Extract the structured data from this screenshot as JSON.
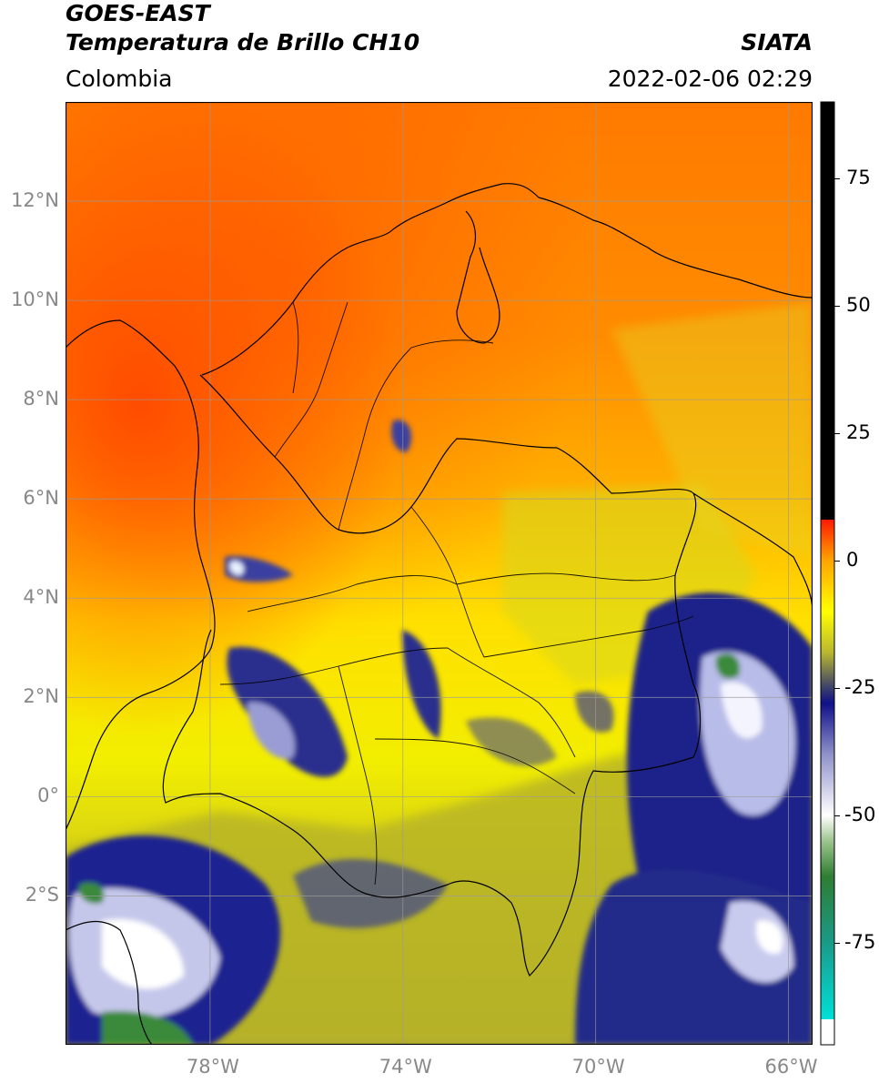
{
  "header": {
    "satellite": "GOES-EAST",
    "product": "Temperatura de Brillo CH10",
    "region": "Colombia",
    "agency": "SIATA",
    "datetime": "2022-02-06 02:29"
  },
  "map": {
    "extent": {
      "lon": [
        -81.0,
        -65.5
      ],
      "lat": [
        -5.0,
        14.0
      ]
    },
    "lat_ticks": [
      {
        "value": 12,
        "label": "12°N"
      },
      {
        "value": 10,
        "label": "10°N"
      },
      {
        "value": 8,
        "label": "8°N"
      },
      {
        "value": 6,
        "label": "6°N"
      },
      {
        "value": 4,
        "label": "4°N"
      },
      {
        "value": 2,
        "label": "2°N"
      },
      {
        "value": 0,
        "label": "0°"
      },
      {
        "value": -2,
        "label": "2°S"
      }
    ],
    "lon_ticks": [
      {
        "value": -78,
        "label": "78°W"
      },
      {
        "value": -74,
        "label": "74°W"
      },
      {
        "value": -70,
        "label": "70°W"
      },
      {
        "value": -66,
        "label": "66°W"
      }
    ],
    "grid": true
  },
  "colorbar": {
    "range": [
      -95,
      90
    ],
    "ticks": [
      {
        "value": 75,
        "label": "75"
      },
      {
        "value": 50,
        "label": "50"
      },
      {
        "value": 25,
        "label": "25"
      },
      {
        "value": 0,
        "label": "0"
      },
      {
        "value": -25,
        "label": "-25"
      },
      {
        "value": -50,
        "label": "-50"
      },
      {
        "value": -75,
        "label": "-75"
      }
    ],
    "stops": [
      {
        "value": -95,
        "color": "#ffffff"
      },
      {
        "value": -90,
        "color": "#ffffff"
      },
      {
        "value": -90,
        "color": "#00e0d8"
      },
      {
        "value": -75,
        "color": "#1a9a88"
      },
      {
        "value": -62,
        "color": "#2e7d32"
      },
      {
        "value": -55,
        "color": "#9dc58f"
      },
      {
        "value": -50,
        "color": "#ffffff"
      },
      {
        "value": -38,
        "color": "#8f91c9"
      },
      {
        "value": -28,
        "color": "#10108a"
      },
      {
        "value": -25,
        "color": "#3a3f6a"
      },
      {
        "value": -18,
        "color": "#b9b730"
      },
      {
        "value": -10,
        "color": "#ffff00"
      },
      {
        "value": 0,
        "color": "#ffa500"
      },
      {
        "value": 8,
        "color": "#ff1a00"
      },
      {
        "value": 8,
        "color": "#000000"
      },
      {
        "value": 90,
        "color": "#000000"
      }
    ]
  }
}
